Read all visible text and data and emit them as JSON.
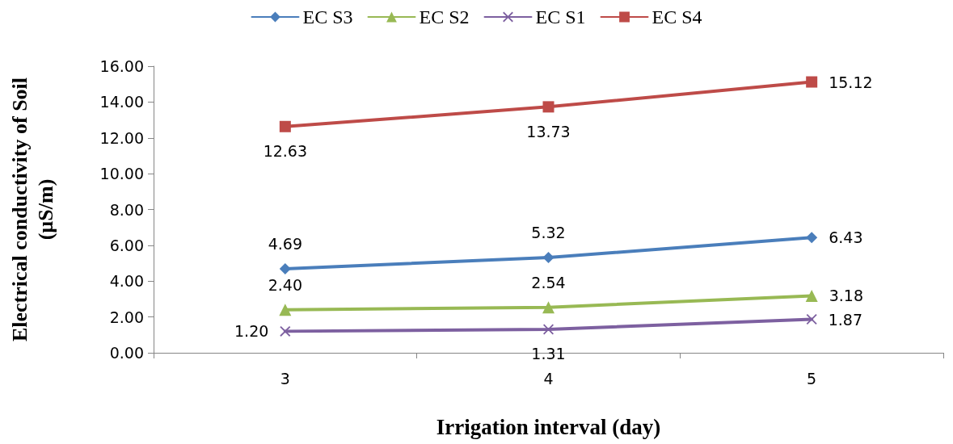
{
  "chart_data": {
    "type": "line",
    "xlabel": "Irrigation interval (day)",
    "ylabel": "Electrical conductivity of Soil\n(µS/m)",
    "categories": [
      "3",
      "4",
      "5"
    ],
    "series": [
      {
        "name": "EC S3",
        "color": "#4a7ebb",
        "marker": "diamond",
        "values": [
          4.69,
          5.32,
          6.43
        ],
        "value_labels": [
          "4.69",
          "5.32",
          "6.43"
        ]
      },
      {
        "name": "EC S2",
        "color": "#98b954",
        "marker": "triangle",
        "values": [
          2.4,
          2.54,
          3.18
        ],
        "value_labels": [
          "2.40",
          "2.54",
          "3.18"
        ]
      },
      {
        "name": "EC S1",
        "color": "#7d60a0",
        "marker": "cross",
        "values": [
          1.2,
          1.31,
          1.87
        ],
        "value_labels": [
          "1.20",
          "1.31",
          "1.87"
        ]
      },
      {
        "name": "EC S4",
        "color": "#be4b48",
        "marker": "square",
        "values": [
          12.63,
          13.73,
          15.12
        ],
        "value_labels": [
          "12.63",
          "13.73",
          "15.12"
        ]
      }
    ],
    "ylim": [
      0,
      16
    ],
    "yticks": [
      {
        "value": 0,
        "label": "0.00"
      },
      {
        "value": 2,
        "label": "2.00"
      },
      {
        "value": 4,
        "label": "4.00"
      },
      {
        "value": 6,
        "label": "6.00"
      },
      {
        "value": 8,
        "label": "8.00"
      },
      {
        "value": 10,
        "label": "10.00"
      },
      {
        "value": 12,
        "label": "12.00"
      },
      {
        "value": 14,
        "label": "14.00"
      },
      {
        "value": 16,
        "label": "16.00"
      }
    ],
    "grid": false,
    "legend": "top",
    "line_style": "solid"
  }
}
